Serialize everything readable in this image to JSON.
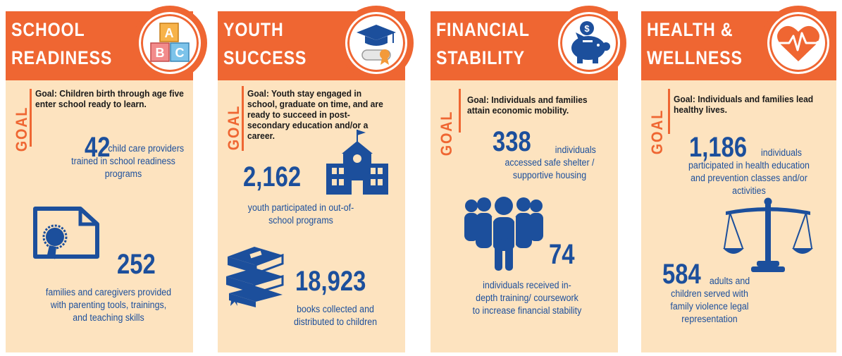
{
  "colors": {
    "orange": "#ef6632",
    "blue": "#1c4f9c",
    "panel_bg": "#fde3bf"
  },
  "goal_label": "GOAL",
  "panels": [
    {
      "title_line1": "SCHOOL",
      "title_line2": "READINESS",
      "icon": "abc-blocks-icon",
      "blocks": [
        "A",
        "B",
        "C"
      ],
      "goal": "Goal: Children birth through age five enter school ready to learn.",
      "stats": [
        {
          "value": "42",
          "text": "child care providers trained in school readiness programs"
        },
        {
          "value": "252",
          "text": "families and caregivers provided with parenting tools, trainings, and teaching skills"
        }
      ]
    },
    {
      "title_line1": "YOUTH",
      "title_line2": "SUCCESS",
      "icon": "graduation-cap-diploma-icon",
      "goal": "Goal: Youth stay engaged in school, graduate on time, and are ready to succeed in post-secondary education and/or a career.",
      "stats": [
        {
          "value": "2,162",
          "text": "youth participated in out-of-school programs"
        },
        {
          "value": "18,923",
          "text": "books collected and distributed to children"
        }
      ]
    },
    {
      "title_line1": "FINANCIAL",
      "title_line2": "STABILITY",
      "icon": "piggy-bank-icon",
      "goal": "Goal: Individuals and families attain economic mobility.",
      "stats": [
        {
          "value": "338",
          "text": "individuals accessed safe shelter / supportive housing"
        },
        {
          "value": "74",
          "text": "individuals received in-depth training/ coursework to increase financial stability"
        }
      ]
    },
    {
      "title_line1": "HEALTH &",
      "title_line2": "WELLNESS",
      "icon": "heart-pulse-icon",
      "goal": "Goal: Individuals and families lead healthy lives.",
      "stats": [
        {
          "value": "1,186",
          "text": "individuals participated in health education and prevention classes and/or activities"
        },
        {
          "value": "584",
          "text": "adults and children served with family violence legal representation"
        }
      ]
    }
  ]
}
